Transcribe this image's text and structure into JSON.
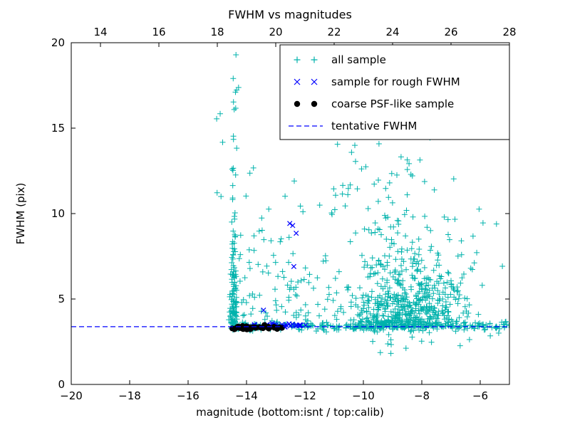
{
  "chart_data": {
    "type": "scatter",
    "title": "FWHM vs magnitudes",
    "xlabel": "magnitude (bottom:isnt / top:calib)",
    "ylabel": "FWHM (pix)",
    "xlim": [
      -20,
      -5
    ],
    "ylim": [
      0,
      20
    ],
    "grid": false,
    "x_axis_bottom": {
      "values": [
        -20,
        -18,
        -16,
        -14,
        -12,
        -10,
        -8,
        -6
      ],
      "labels": [
        "−20",
        "−18",
        "−16",
        "−14",
        "−12",
        "−10",
        "−8",
        "−6"
      ]
    },
    "x_axis_top": {
      "values": [
        14,
        16,
        18,
        20,
        22,
        24,
        26,
        28
      ],
      "labels": [
        "14",
        "16",
        "18",
        "20",
        "22",
        "24",
        "26",
        "28"
      ],
      "offset_from_bottom": 33
    },
    "y_axis": {
      "values": [
        0,
        5,
        10,
        15,
        20
      ],
      "labels": [
        "0",
        "5",
        "10",
        "15",
        "20"
      ]
    },
    "colors": {
      "all_sample": "#00b2ac",
      "rough_fwhm": "#0000ff",
      "coarse_psf": "#000000",
      "tentative_line": "#0000ff",
      "axes": "#000000",
      "background": "#ffffff"
    },
    "tentative_fwhm_value": 3.38,
    "legend": {
      "position": "upper right",
      "entries": [
        "all sample",
        "sample for rough FWHM",
        "coarse PSF-like sample",
        "tentative FWHM"
      ]
    },
    "seed": 20240817,
    "series": [
      {
        "name": "all sample",
        "marker": "plus",
        "color_key": "all_sample",
        "clusters": [
          {
            "count": 130,
            "x": {
              "dist": "gauss",
              "mean": -14.44,
              "sd": 0.06
            },
            "y": {
              "dist": "exp",
              "base": 3.25,
              "scale": 3.0,
              "hi": 19.7
            }
          },
          {
            "count": 8,
            "x": {
              "dist": "gauss",
              "mean": -14.42,
              "sd": 0.08
            },
            "y": {
              "dist": "uniform",
              "min": 13.5,
              "max": 19.7
            }
          },
          {
            "count": 85,
            "x": {
              "dist": "uniform",
              "min": -14.35,
              "max": -11.85
            },
            "y": {
              "dist": "exp",
              "base": 3.3,
              "scale": 3.2,
              "hi": 15.2
            }
          },
          {
            "count": 640,
            "x": {
              "dist": "gauss",
              "mean": -8.55,
              "sd": 1.05,
              "lo": -11.6,
              "hi": -6.05
            },
            "y": {
              "dist": "exp",
              "base": 3.25,
              "scale": 1.9,
              "hi": 14.6
            }
          },
          {
            "count": 30,
            "x": {
              "dist": "uniform",
              "min": -11.4,
              "max": -8.7
            },
            "y": {
              "dist": "uniform",
              "min": 8.5,
              "max": 15.0
            }
          },
          {
            "count": 250,
            "x": {
              "dist": "uniform",
              "min": -14.55,
              "max": -5.0
            },
            "y": {
              "dist": "gauss",
              "mean": 3.4,
              "sd": 0.13
            }
          },
          {
            "count": 25,
            "x": {
              "dist": "uniform",
              "min": -12.3,
              "max": -10.7
            },
            "y": {
              "dist": "exp",
              "base": 3.4,
              "scale": 2.2,
              "hi": 12.0
            }
          },
          {
            "count": 14,
            "x": {
              "dist": "uniform",
              "min": -10.6,
              "max": -5.1
            },
            "y": {
              "dist": "uniform",
              "min": 1.6,
              "max": 3.0
            }
          },
          {
            "count": 12,
            "x": {
              "dist": "uniform",
              "min": -7.2,
              "max": -5.1
            },
            "y": {
              "dist": "uniform",
              "min": 4.6,
              "max": 10.5
            }
          },
          {
            "count": 5,
            "x": {
              "dist": "uniform",
              "min": -15.05,
              "max": -14.6
            },
            "y": {
              "dist": "uniform",
              "min": 8.0,
              "max": 17.0
            }
          }
        ],
        "points": []
      },
      {
        "name": "sample for rough FWHM",
        "marker": "x",
        "color_key": "rough_fwhm",
        "clusters": [
          {
            "count": 30,
            "x": {
              "dist": "uniform",
              "min": -13.35,
              "max": -11.95
            },
            "y": {
              "dist": "gauss",
              "mean": 3.42,
              "sd": 0.07
            }
          },
          {
            "count": 5,
            "x": {
              "dist": "uniform",
              "min": -14.0,
              "max": -13.35
            },
            "y": {
              "dist": "gauss",
              "mean": 3.45,
              "sd": 0.05
            }
          }
        ],
        "points": [
          [
            -12.52,
            9.42
          ],
          [
            -12.42,
            9.3
          ],
          [
            -12.38,
            6.9
          ],
          [
            -12.3,
            8.85
          ],
          [
            -13.42,
            4.35
          ]
        ]
      },
      {
        "name": "coarse PSF-like sample",
        "marker": "dot",
        "color_key": "coarse_psf",
        "clusters": [
          {
            "count": 48,
            "x": {
              "dist": "uniform",
              "min": -14.52,
              "max": -12.78
            },
            "y": {
              "dist": "gauss",
              "mean": 3.33,
              "sd": 0.04
            }
          }
        ],
        "points": []
      },
      {
        "name": "tentative FWHM",
        "marker": "dashed-line",
        "color_key": "tentative_line",
        "line_y": 3.38
      }
    ]
  }
}
